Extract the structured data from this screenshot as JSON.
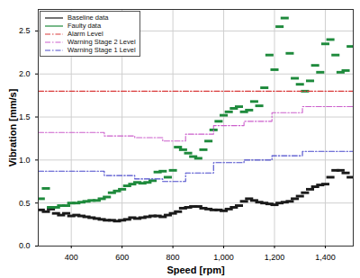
{
  "chart_data": {
    "type": "scatter",
    "x_label": "Speed [rpm]",
    "y_label": "Vibration [mm/s]",
    "xlim": [
      270,
      1510
    ],
    "ylim": [
      0,
      2.75
    ],
    "xticks": [
      400,
      600,
      800,
      1000,
      1200,
      1400
    ],
    "yticks": [
      0,
      0.5,
      1,
      1.5,
      2,
      2.5
    ],
    "grid": true,
    "legend": "top-left",
    "series": [
      {
        "name": "Baseline data",
        "color": "#1a1a1a",
        "type": "scatter",
        "marker": "dash",
        "x": [
          280,
          300,
          320,
          340,
          360,
          380,
          400,
          420,
          440,
          460,
          480,
          500,
          520,
          540,
          560,
          580,
          600,
          620,
          640,
          660,
          680,
          700,
          720,
          740,
          760,
          780,
          800,
          820,
          840,
          860,
          880,
          900,
          920,
          940,
          960,
          980,
          1000,
          1020,
          1040,
          1060,
          1080,
          1100,
          1120,
          1140,
          1160,
          1180,
          1200,
          1220,
          1240,
          1260,
          1280,
          1300,
          1320,
          1340,
          1360,
          1380,
          1400,
          1420,
          1440,
          1460,
          1480,
          1500
        ],
        "values": [
          0.42,
          0.4,
          0.43,
          0.38,
          0.36,
          0.38,
          0.35,
          0.36,
          0.35,
          0.34,
          0.33,
          0.32,
          0.31,
          0.3,
          0.3,
          0.29,
          0.3,
          0.31,
          0.33,
          0.32,
          0.33,
          0.34,
          0.35,
          0.35,
          0.34,
          0.36,
          0.38,
          0.4,
          0.44,
          0.45,
          0.46,
          0.46,
          0.44,
          0.43,
          0.42,
          0.42,
          0.41,
          0.43,
          0.45,
          0.47,
          0.52,
          0.55,
          0.53,
          0.51,
          0.5,
          0.49,
          0.48,
          0.5,
          0.51,
          0.52,
          0.55,
          0.58,
          0.62,
          0.66,
          0.69,
          0.71,
          0.72,
          0.8,
          0.88,
          0.88,
          0.85,
          0.8
        ]
      },
      {
        "name": "Faulty data",
        "color": "#1e8a3c",
        "type": "scatter",
        "marker": "dash",
        "x": [
          280,
          300,
          320,
          340,
          360,
          380,
          400,
          420,
          440,
          460,
          480,
          500,
          520,
          540,
          560,
          580,
          600,
          620,
          640,
          660,
          680,
          700,
          720,
          740,
          760,
          780,
          800,
          820,
          840,
          860,
          880,
          900,
          920,
          940,
          960,
          980,
          1000,
          1020,
          1040,
          1060,
          1080,
          1100,
          1120,
          1140,
          1160,
          1180,
          1200,
          1220,
          1240,
          1260,
          1280,
          1300,
          1320,
          1340,
          1360,
          1380,
          1400,
          1420,
          1440,
          1460,
          1480,
          1500
        ],
        "values": [
          0.55,
          0.67,
          0.45,
          0.45,
          0.47,
          0.47,
          0.5,
          0.5,
          0.51,
          0.52,
          0.53,
          0.53,
          0.55,
          0.57,
          0.62,
          0.64,
          0.66,
          0.7,
          0.72,
          0.74,
          0.73,
          0.74,
          0.76,
          0.86,
          0.87,
          0.8,
          0.88,
          1.15,
          1.12,
          1.08,
          1.04,
          1.02,
          1.12,
          1.22,
          1.35,
          1.45,
          1.52,
          1.56,
          1.6,
          1.62,
          1.56,
          1.58,
          1.68,
          1.63,
          1.84,
          2.22,
          2.05,
          2.55,
          2.65,
          2.24,
          1.95,
          1.88,
          1.8,
          1.92,
          2.1,
          2.02,
          2.35,
          2.4,
          2.22,
          2.02,
          2.04,
          2.32
        ]
      },
      {
        "name": "Alarm Level",
        "color": "#d93a3a",
        "type": "step",
        "line_style": "dashdot",
        "x": [
          270,
          1510
        ],
        "values": [
          1.8,
          1.8
        ]
      },
      {
        "name": "Warning Stage 2 Level",
        "color": "#cc5fcc",
        "type": "step",
        "line_style": "dashdot",
        "x": [
          270,
          530,
          650,
          760,
          850,
          960,
          1080,
          1190,
          1310,
          1510
        ],
        "values": [
          1.32,
          1.28,
          1.26,
          1.22,
          1.3,
          1.4,
          1.45,
          1.55,
          1.62,
          1.62
        ]
      },
      {
        "name": "Warning Stage 1 Level",
        "color": "#4a4acc",
        "type": "step",
        "line_style": "dashdot",
        "x": [
          270,
          530,
          650,
          760,
          850,
          960,
          1080,
          1190,
          1310,
          1510
        ],
        "values": [
          0.87,
          0.82,
          0.78,
          0.75,
          0.85,
          0.97,
          1.0,
          1.05,
          1.1,
          1.1
        ]
      }
    ]
  }
}
